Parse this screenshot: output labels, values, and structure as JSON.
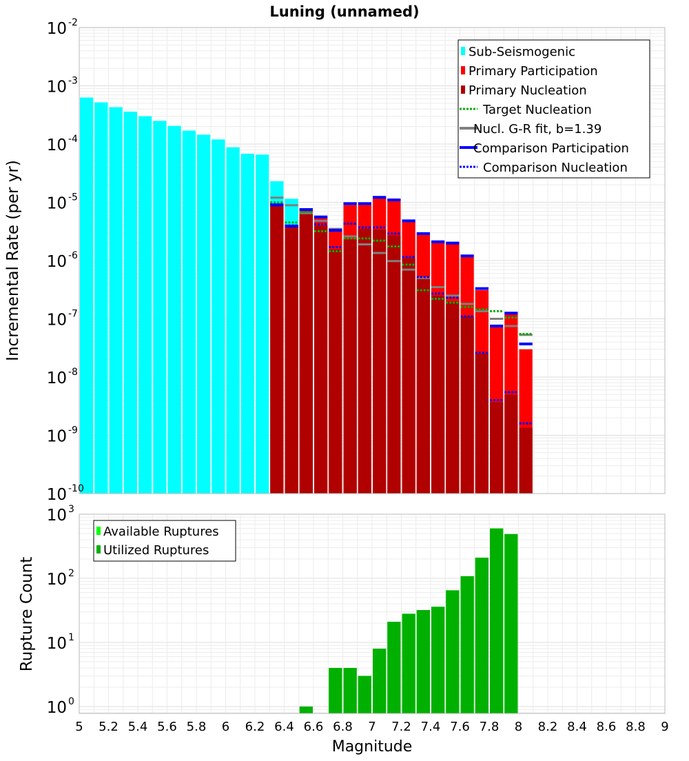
{
  "figure": {
    "title": "Luning (unnamed)"
  },
  "chart_data": [
    {
      "type": "bar",
      "title": "Luning (unnamed)",
      "xlabel": "Magnitude",
      "ylabel": "Incremental Rate (per yr)",
      "yscale": "log",
      "xlim": [
        5,
        9
      ],
      "ylim": [
        1e-10,
        0.01
      ],
      "bin_width": 0.1,
      "x": [
        5.05,
        5.15,
        5.25,
        5.35,
        5.45,
        5.55,
        5.65,
        5.75,
        5.85,
        5.95,
        6.05,
        6.15,
        6.25,
        6.35,
        6.45,
        6.55,
        6.65,
        6.75,
        6.85,
        6.95,
        7.05,
        7.15,
        7.25,
        7.35,
        7.45,
        7.55,
        7.65,
        7.75,
        7.85,
        7.95,
        8.05
      ],
      "x_ticks": [
        "5",
        "5.2",
        "5.4",
        "5.6",
        "5.8",
        "6",
        "6.2",
        "6.4",
        "6.6",
        "6.8",
        "7",
        "7.2",
        "7.4",
        "7.6",
        "7.8",
        "8",
        "8.2",
        "8.4",
        "8.6",
        "8.8",
        "9"
      ],
      "y_ticks": [
        {
          "base": "10",
          "exp": "-10"
        },
        {
          "base": "10",
          "exp": "-9"
        },
        {
          "base": "10",
          "exp": "-8"
        },
        {
          "base": "10",
          "exp": "-7"
        },
        {
          "base": "10",
          "exp": "-6"
        },
        {
          "base": "10",
          "exp": "-5"
        },
        {
          "base": "10",
          "exp": "-4"
        },
        {
          "base": "10",
          "exp": "-3"
        },
        {
          "base": "10",
          "exp": "-2"
        }
      ],
      "legend_position": "top-right",
      "legend": [
        {
          "label": "Sub-Seismogenic",
          "kind": "bar",
          "color": "#00ffff"
        },
        {
          "label": "Primary Participation",
          "kind": "bar",
          "color": "#ff0000"
        },
        {
          "label": "Primary Nucleation",
          "kind": "bar",
          "color": "#b00000"
        },
        {
          "label": "Target Nucleation",
          "kind": "dotted",
          "color": "#00b000"
        },
        {
          "label": "Nucl. G-R fit, b=1.39",
          "kind": "solid",
          "color": "#808080"
        },
        {
          "label": "Comparison Participation",
          "kind": "solid",
          "color": "#0000ff"
        },
        {
          "label": "Comparison Nucleation",
          "kind": "dotted",
          "color": "#0000ff"
        }
      ],
      "series": [
        {
          "name": "Sub-Seismogenic",
          "color": "#00ffff",
          "values": [
            0.00063,
            0.00052,
            0.00043,
            0.00036,
            0.0003,
            0.00025,
            0.000205,
            0.00017,
            0.000145,
            0.00012,
            8.8e-05,
            6.8e-05,
            6.6e-05,
            2.3e-05,
            1.15e-05,
            7.6e-06,
            null,
            null,
            null,
            null,
            null,
            null,
            null,
            null,
            null,
            null,
            null,
            null,
            null,
            null,
            null
          ]
        },
        {
          "name": "Primary Participation",
          "color": "#ff0000",
          "values": [
            null,
            null,
            null,
            null,
            null,
            null,
            null,
            null,
            null,
            null,
            null,
            null,
            null,
            9.5e-06,
            4e-06,
            7.3e-06,
            5.5e-06,
            3.2e-06,
            9e-06,
            9.2e-06,
            1.2e-05,
            1.08e-05,
            4.7e-06,
            2.8e-06,
            2.05e-06,
            1.95e-06,
            1.15e-06,
            3.1e-07,
            7.2e-08,
            1.2e-07,
            3e-08
          ]
        },
        {
          "name": "Primary Nucleation",
          "color": "#b00000",
          "values": [
            null,
            null,
            null,
            null,
            null,
            null,
            null,
            null,
            null,
            null,
            null,
            null,
            null,
            9e-06,
            3.8e-06,
            6.3e-06,
            4e-06,
            1.55e-06,
            2.3e-06,
            3.5e-06,
            3.4e-06,
            2.7e-06,
            1.1e-06,
            4.8e-07,
            2.5e-07,
            2e-07,
            1.1e-07,
            2.5e-08,
            3.7e-09,
            5e-09,
            1.35e-09
          ]
        },
        {
          "name": "Target Nucleation",
          "color": "#00b000",
          "values": [
            null,
            null,
            null,
            null,
            null,
            null,
            null,
            null,
            null,
            null,
            null,
            null,
            null,
            1e-05,
            4.5e-06,
            6.8e-06,
            3.2e-06,
            1.45e-06,
            2.4e-06,
            2.4e-06,
            2.2e-06,
            1.75e-06,
            8.5e-07,
            3.1e-07,
            2.2e-07,
            1.9e-07,
            1.6e-07,
            1.45e-07,
            1.35e-07,
            1.05e-07,
            5.5e-08
          ]
        },
        {
          "name": "Nucl. G-R fit, b=1.39",
          "color": "#808080",
          "values": [
            null,
            null,
            null,
            null,
            null,
            null,
            null,
            null,
            null,
            null,
            null,
            null,
            null,
            1.2e-05,
            8.9e-06,
            6.5e-06,
            4.8e-06,
            3.5e-06,
            2.6e-06,
            1.9e-06,
            1.35e-06,
            9.8e-07,
            7e-07,
            5e-07,
            3.5e-07,
            2.5e-07,
            1.8e-07,
            1.35e-07,
            1e-07,
            7.5e-08,
            5.3e-08
          ]
        },
        {
          "name": "Comparison Participation",
          "color": "#0000ff",
          "values": [
            null,
            null,
            null,
            null,
            null,
            null,
            null,
            null,
            null,
            null,
            null,
            null,
            null,
            9e-06,
            3.9e-06,
            7.5e-06,
            5.6e-06,
            3.3e-06,
            9.5e-06,
            9.5e-06,
            1.22e-05,
            1.1e-05,
            4.8e-06,
            2.9e-06,
            2.1e-06,
            2e-06,
            1.2e-06,
            3.3e-07,
            7.5e-08,
            1.25e-07,
            3.7e-08
          ]
        },
        {
          "name": "Comparison Nucleation",
          "color": "#0000ff",
          "values": [
            null,
            null,
            null,
            null,
            null,
            null,
            null,
            null,
            null,
            null,
            null,
            null,
            null,
            9.5e-06,
            4e-06,
            7.5e-06,
            4.2e-06,
            1.7e-06,
            4.3e-06,
            3.7e-06,
            3.7e-06,
            2.9e-06,
            1.15e-06,
            5.2e-07,
            2.7e-07,
            2.3e-07,
            1.1e-07,
            2.6e-08,
            4e-09,
            5.5e-09,
            1.6e-09
          ]
        }
      ]
    },
    {
      "type": "bar",
      "title": "",
      "xlabel": "Magnitude",
      "ylabel": "Rupture Count",
      "yscale": "log",
      "xlim": [
        5,
        9
      ],
      "ylim": [
        0.78,
        1000
      ],
      "bin_width": 0.1,
      "x": [
        6.55,
        6.65,
        6.75,
        6.85,
        6.95,
        7.05,
        7.15,
        7.25,
        7.35,
        7.45,
        7.55,
        7.65,
        7.75,
        7.85,
        7.95
      ],
      "y_ticks": [
        {
          "base": "10",
          "exp": "0"
        },
        {
          "base": "10",
          "exp": "1"
        },
        {
          "base": "10",
          "exp": "2"
        },
        {
          "base": "10",
          "exp": "3"
        }
      ],
      "legend_position": "top-left",
      "legend": [
        {
          "label": "Available Ruptures",
          "kind": "bar",
          "color": "#00ff00"
        },
        {
          "label": "Utilized Ruptures",
          "kind": "bar",
          "color": "#00b000"
        }
      ],
      "series": [
        {
          "name": "Available Ruptures",
          "color": "#00ff00",
          "values": [
            1,
            0,
            4,
            4,
            3,
            8,
            21,
            28,
            32,
            36,
            65,
            108,
            210,
            600,
            490
          ]
        },
        {
          "name": "Utilized Ruptures",
          "color": "#00b000",
          "values": [
            1,
            0,
            4,
            4,
            3,
            8,
            21,
            28,
            32,
            36,
            65,
            108,
            210,
            600,
            490
          ]
        }
      ]
    }
  ]
}
